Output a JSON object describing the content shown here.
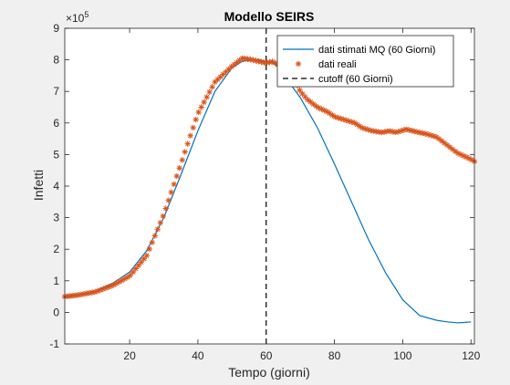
{
  "chart_data": {
    "type": "line",
    "title": "Modello SEIRS",
    "xlabel": "Tempo (giorni)",
    "ylabel": "Infetti",
    "exponent_base": "×10",
    "exponent_power": "5",
    "xlim": [
      1,
      121
    ],
    "ylim": [
      -100000,
      900000
    ],
    "xticks": [
      20,
      40,
      60,
      80,
      100,
      120
    ],
    "yticks": [
      -100000,
      0,
      100000,
      200000,
      300000,
      400000,
      500000,
      600000,
      700000,
      800000,
      900000
    ],
    "ytick_labels": [
      "-1",
      "0",
      "1",
      "2",
      "3",
      "4",
      "5",
      "6",
      "7",
      "8",
      "9"
    ],
    "xtick_labels": [
      "20",
      "40",
      "60",
      "80",
      "100",
      "120"
    ],
    "grid": false,
    "legend_position": "top-right",
    "cutoff": {
      "name": "cutoff (60 Giorni)",
      "x": 60,
      "color": "#000000",
      "style": "dashed"
    },
    "series": [
      {
        "name": "dati stimati MQ (60 Giorni)",
        "style": "line",
        "color": "#0072bd",
        "x": [
          1,
          5,
          10,
          15,
          20,
          25,
          30,
          35,
          40,
          45,
          50,
          53,
          56,
          58,
          60,
          62,
          64,
          66,
          70,
          75,
          80,
          85,
          90,
          95,
          100,
          105,
          110,
          113,
          116,
          118,
          120
        ],
        "y": [
          50000,
          55000,
          68000,
          92000,
          128000,
          195000,
          300000,
          435000,
          575000,
          700000,
          775000,
          795000,
          800000,
          800000,
          795000,
          790000,
          775000,
          740000,
          680000,
          585000,
          470000,
          350000,
          230000,
          125000,
          40000,
          -10000,
          -25000,
          -30000,
          -33000,
          -32000,
          -30000
        ]
      },
      {
        "name": "dati reali",
        "style": "markers",
        "marker": "*",
        "color": "#d95319",
        "x": [
          1,
          5,
          10,
          15,
          20,
          25,
          30,
          35,
          40,
          45,
          50,
          53,
          56,
          58,
          60,
          62,
          64,
          66,
          68,
          70,
          72,
          75,
          78,
          80,
          83,
          86,
          88,
          91,
          94,
          96,
          98,
          101,
          104,
          107,
          110,
          113,
          116,
          118,
          120,
          121
        ],
        "y": [
          50000,
          55000,
          65000,
          85000,
          115000,
          180000,
          310000,
          470000,
          630000,
          730000,
          780000,
          805000,
          800000,
          795000,
          790000,
          795000,
          780000,
          760000,
          740000,
          700000,
          675000,
          650000,
          635000,
          620000,
          610000,
          600000,
          585000,
          575000,
          570000,
          575000,
          570000,
          580000,
          572000,
          565000,
          555000,
          530000,
          505000,
          495000,
          485000,
          478000
        ]
      }
    ]
  }
}
